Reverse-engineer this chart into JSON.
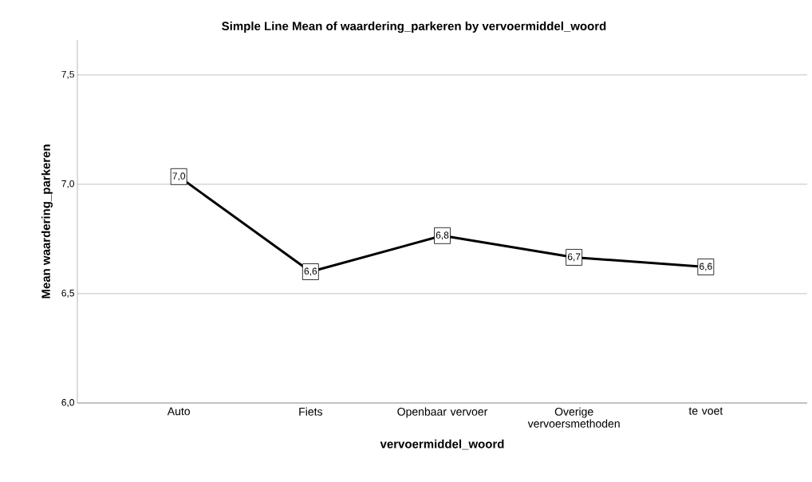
{
  "chart_data": {
    "type": "line",
    "title": "Simple Line Mean of waardering_parkeren by vervoermiddel_woord",
    "xlabel": "vervoermiddel_woord",
    "ylabel": "Mean waardering_parkeren",
    "categories": [
      "Auto",
      "Fiets",
      "Openbaar vervoer",
      "Overige vervoersmethoden",
      "te voet"
    ],
    "values": [
      7.035,
      6.6,
      6.765,
      6.666,
      6.622
    ],
    "value_labels": [
      "7,0",
      "6,6",
      "6,8",
      "6,7",
      "6,6"
    ],
    "color": "#000000",
    "ylim": [
      6.0,
      7.66
    ],
    "yticks": [
      {
        "value": 6.0,
        "label": "6,0"
      },
      {
        "value": 6.5,
        "label": "6,5"
      },
      {
        "value": 7.0,
        "label": "7,0"
      },
      {
        "value": 7.5,
        "label": "7,5"
      }
    ],
    "grid": "y",
    "marker": "square",
    "line_style": "solid"
  }
}
